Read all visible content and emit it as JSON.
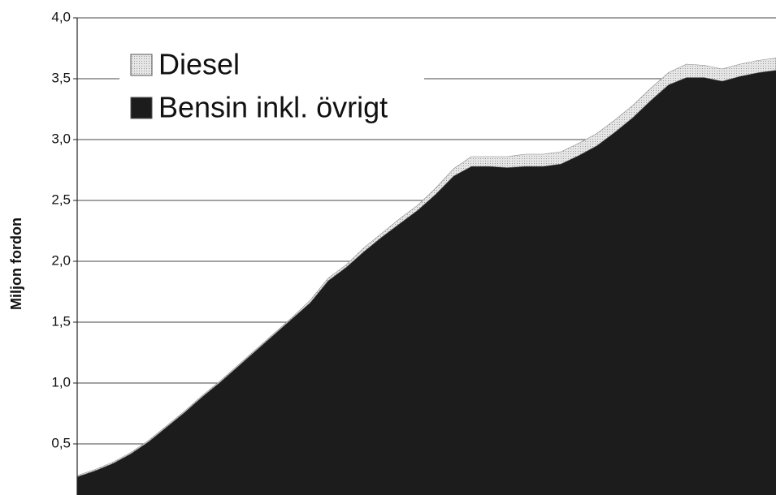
{
  "chart_data": {
    "type": "stacked-area",
    "y_label": "Miljon fordon",
    "categories": [
      null,
      null,
      null,
      null,
      null,
      null,
      null,
      null,
      null,
      null,
      null,
      null,
      null,
      null,
      null,
      null,
      null,
      null,
      null,
      null,
      null,
      null,
      null,
      null,
      null,
      null,
      null,
      null,
      null,
      null,
      null,
      null,
      null,
      null,
      null,
      null,
      null,
      null,
      null,
      null
    ],
    "series": [
      {
        "name": "Bensin inkl. övrigt",
        "color": "#1c1c1c",
        "values": [
          0.23,
          0.28,
          0.34,
          0.42,
          0.52,
          0.64,
          0.76,
          0.89,
          1.01,
          1.14,
          1.27,
          1.4,
          1.53,
          1.66,
          1.84,
          1.95,
          2.08,
          2.2,
          2.31,
          2.42,
          2.55,
          2.7,
          2.78,
          2.78,
          2.77,
          2.78,
          2.78,
          2.8,
          2.87,
          2.95,
          3.06,
          3.18,
          3.32,
          3.45,
          3.51,
          3.51,
          3.48,
          3.52,
          3.55,
          3.57
        ]
      },
      {
        "name": "Diesel",
        "color": "#d4d4d4",
        "values": [
          0.01,
          0.01,
          0.01,
          0.01,
          0.01,
          0.01,
          0.01,
          0.01,
          0.01,
          0.01,
          0.01,
          0.01,
          0.01,
          0.02,
          0.02,
          0.02,
          0.03,
          0.03,
          0.04,
          0.04,
          0.05,
          0.06,
          0.08,
          0.08,
          0.09,
          0.1,
          0.1,
          0.1,
          0.1,
          0.1,
          0.1,
          0.1,
          0.1,
          0.1,
          0.11,
          0.1,
          0.1,
          0.1,
          0.1,
          0.1
        ]
      }
    ],
    "ylim": [
      0,
      4
    ],
    "yticks": [
      {
        "value": 0.5,
        "label": "0,5"
      },
      {
        "value": 1,
        "label": "1,0"
      },
      {
        "value": 1.5,
        "label": "1,5"
      },
      {
        "value": 2,
        "label": "2,0"
      },
      {
        "value": 2.5,
        "label": "2,5"
      },
      {
        "value": 3,
        "label": "3,0"
      },
      {
        "value": 3.5,
        "label": "3,5"
      },
      {
        "value": 4,
        "label": "4,0"
      }
    ],
    "grid": true,
    "legend": "upper left"
  }
}
